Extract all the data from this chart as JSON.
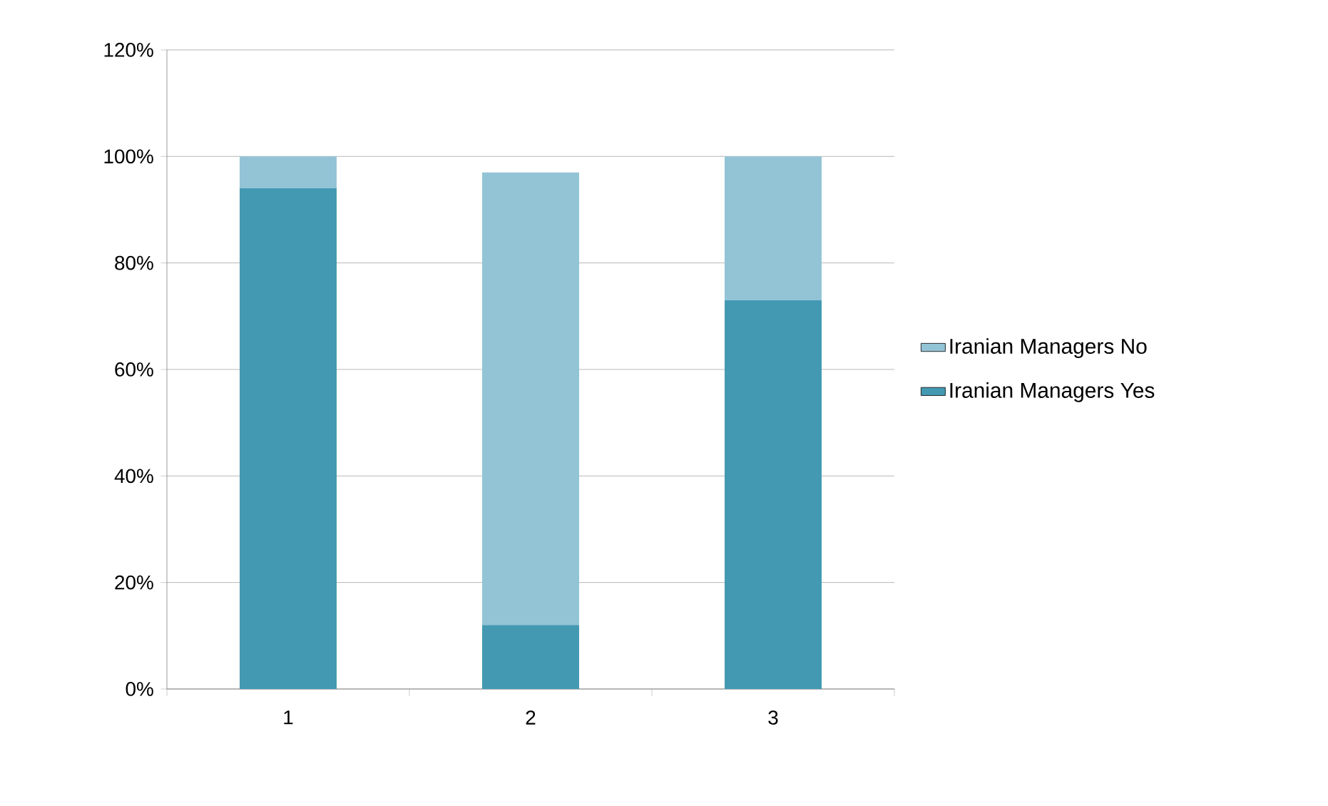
{
  "chart_data": {
    "type": "bar",
    "stacked": true,
    "categories": [
      "1",
      "2",
      "3"
    ],
    "series": [
      {
        "name": "Iranian Managers Yes",
        "color": "#4399b1",
        "values": [
          94,
          12,
          73
        ]
      },
      {
        "name": "Iranian Managers No",
        "color": "#93c4d6",
        "values": [
          6,
          85,
          27
        ]
      }
    ],
    "ylim": [
      0,
      120
    ],
    "yticks": [
      {
        "value": 0,
        "label": "0%"
      },
      {
        "value": 20,
        "label": "20%"
      },
      {
        "value": 40,
        "label": "40%"
      },
      {
        "value": 60,
        "label": "60%"
      },
      {
        "value": 80,
        "label": "80%"
      },
      {
        "value": 100,
        "label": "100%"
      },
      {
        "value": 120,
        "label": "120%"
      }
    ],
    "grid": "y",
    "legend": "right"
  }
}
